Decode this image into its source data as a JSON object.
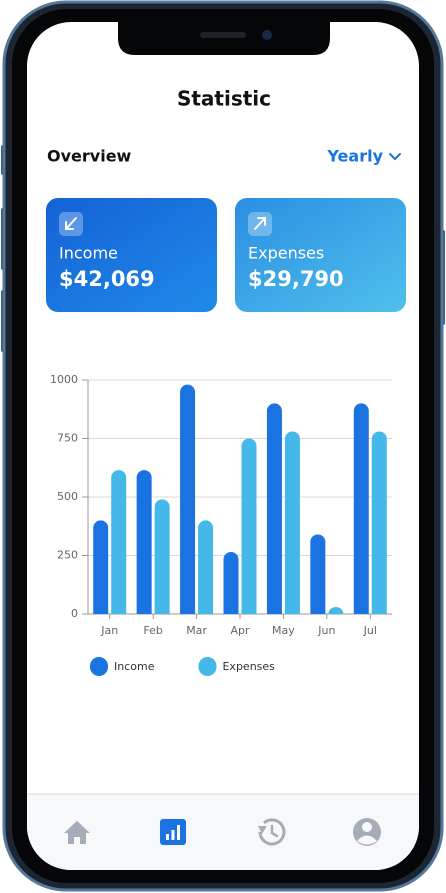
{
  "header": {
    "title": "Statistic"
  },
  "overview": {
    "label": "Overview",
    "period": "Yearly"
  },
  "cards": [
    {
      "label": "Income",
      "amount": "$42,069"
    },
    {
      "label": "Expenses",
      "amount": "$29,790"
    }
  ],
  "chart_data": {
    "type": "bar",
    "categories": [
      "Jan",
      "Feb",
      "Mar",
      "Apr",
      "May",
      "Jun",
      "Jul"
    ],
    "series": [
      {
        "name": "Income",
        "color": "#1a73e0",
        "values": [
          400,
          615,
          980,
          265,
          900,
          340,
          900
        ]
      },
      {
        "name": "Expenses",
        "color": "#45b8ea",
        "values": [
          615,
          490,
          400,
          750,
          780,
          30,
          780
        ]
      }
    ],
    "ylim": [
      0,
      1000
    ],
    "yticks": [
      0,
      250,
      500,
      750,
      1000
    ],
    "grid": true,
    "legend": "bottom-left"
  }
}
